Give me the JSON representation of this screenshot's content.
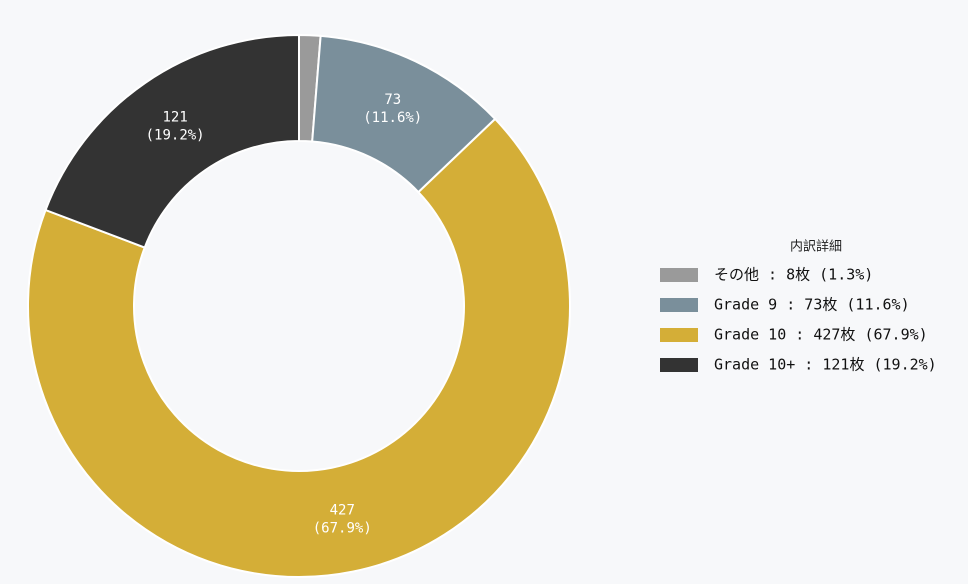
{
  "chart_data": {
    "type": "donut",
    "categories": [
      "その他 : 8枚 (1.3%)",
      "Grade 9 : 73枚 (11.6%)",
      "Grade 10 : 427枚 (67.9%)",
      "Grade 10+ : 121枚 (19.2%)"
    ],
    "values": [
      8,
      73,
      427,
      121
    ],
    "value_labels": [
      null,
      [
        "73",
        "(11.6%)"
      ],
      [
        "427",
        "(67.9%)"
      ],
      [
        "121",
        "(19.2%)"
      ]
    ],
    "colors": [
      "#9a9a9a",
      "#7a8f9b",
      "#d4ae37",
      "#333333"
    ],
    "legend_title": "内訳詳細",
    "legend": "right"
  }
}
